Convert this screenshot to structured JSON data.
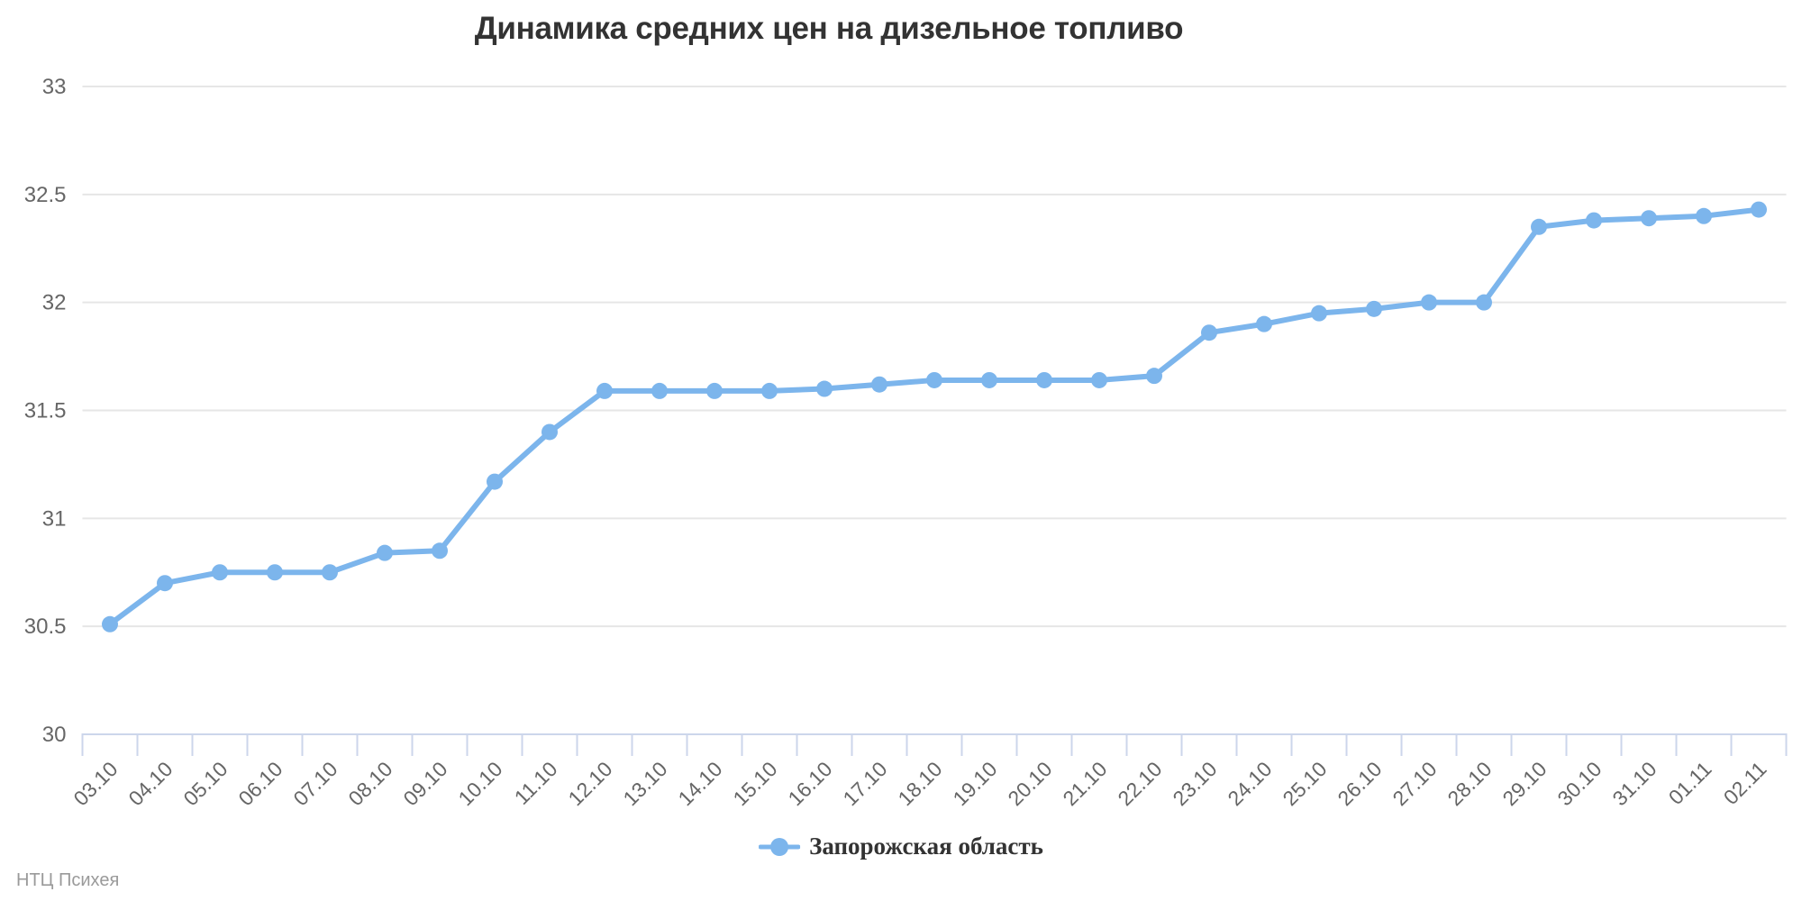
{
  "title": "Динамика средних цен на дизельное топливо",
  "credits": "НТЦ Психея",
  "legend": {
    "series_label": "Запорожская область"
  },
  "colors": {
    "series": "#7cb5ec",
    "grid": "#e6e6e6",
    "axis_line": "#ccd6eb",
    "labels": "#666666",
    "title": "#333333",
    "credits": "#9a9a9a"
  },
  "chart_data": {
    "type": "line",
    "title": "Динамика средних цен на дизельное топливо",
    "xlabel": "",
    "ylabel": "",
    "ylim": [
      30,
      33
    ],
    "grid": true,
    "legend_position": "bottom-center",
    "marker": "circle",
    "categories": [
      "03.10",
      "04.10",
      "05.10",
      "06.10",
      "07.10",
      "08.10",
      "09.10",
      "10.10",
      "11.10",
      "12.10",
      "13.10",
      "14.10",
      "15.10",
      "16.10",
      "17.10",
      "18.10",
      "19.10",
      "20.10",
      "21.10",
      "22.10",
      "23.10",
      "24.10",
      "25.10",
      "26.10",
      "27.10",
      "28.10",
      "29.10",
      "30.10",
      "31.10",
      "01.11",
      "02.11"
    ],
    "yticks": [
      {
        "value": 30,
        "label": "30"
      },
      {
        "value": 30.5,
        "label": "30.5"
      },
      {
        "value": 31,
        "label": "31"
      },
      {
        "value": 31.5,
        "label": "31.5"
      },
      {
        "value": 32,
        "label": "32"
      },
      {
        "value": 32.5,
        "label": "32.5"
      },
      {
        "value": 33,
        "label": "33"
      }
    ],
    "series": [
      {
        "name": "Запорожская область",
        "values": [
          30.51,
          30.7,
          30.75,
          30.75,
          30.75,
          30.84,
          30.85,
          31.17,
          31.4,
          31.59,
          31.59,
          31.59,
          31.59,
          31.6,
          31.62,
          31.64,
          31.64,
          31.64,
          31.64,
          31.66,
          31.86,
          31.9,
          31.95,
          31.97,
          32.0,
          32.0,
          32.35,
          32.38,
          32.39,
          32.4,
          32.43
        ]
      }
    ]
  }
}
